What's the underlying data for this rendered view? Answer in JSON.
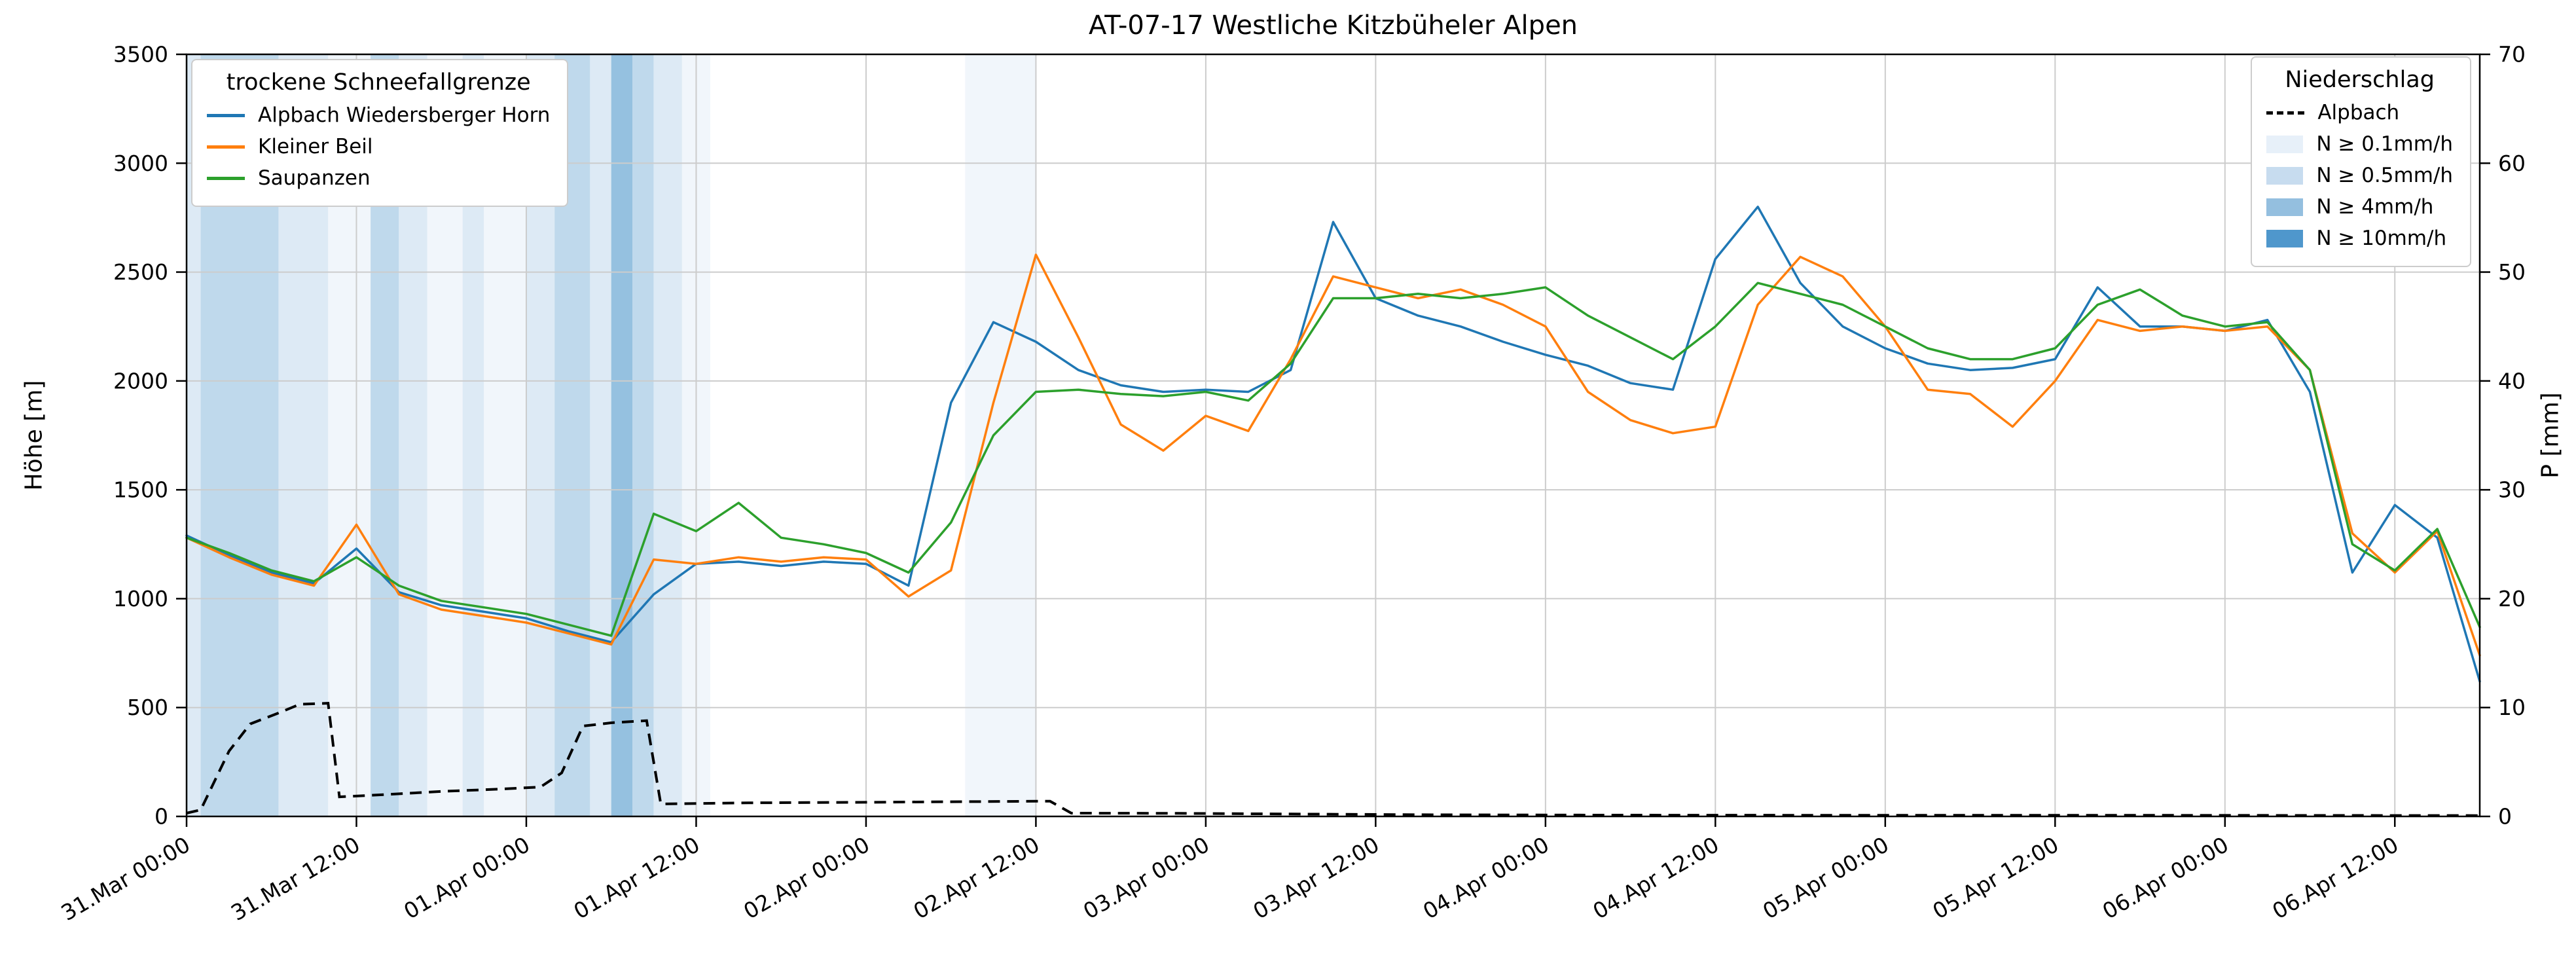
{
  "title": "AT-07-17 Westliche Kitzbüheler Alpen",
  "axes": {
    "y_left": {
      "label": "Höhe [m]",
      "min": 0,
      "max": 3500,
      "ticks": [
        0,
        500,
        1000,
        1500,
        2000,
        2500,
        3000,
        3500
      ]
    },
    "y_right": {
      "label": "P [mm]",
      "min": 0,
      "max": 70,
      "ticks": [
        0,
        10,
        20,
        30,
        40,
        50,
        60,
        70
      ]
    },
    "x": {
      "max_h": 162,
      "tick_hours": [
        0,
        12,
        24,
        36,
        48,
        60,
        72,
        84,
        96,
        108,
        120,
        132,
        144,
        156
      ],
      "tick_labels": [
        "31.Mar 00:00",
        "31.Mar 12:00",
        "01.Apr 00:00",
        "01.Apr 12:00",
        "02.Apr 00:00",
        "02.Apr 12:00",
        "03.Apr 00:00",
        "03.Apr 12:00",
        "04.Apr 00:00",
        "04.Apr 12:00",
        "05.Apr 00:00",
        "05.Apr 12:00",
        "06.Apr 00:00",
        "06.Apr 12:00"
      ],
      "grid": true
    }
  },
  "legends": {
    "snowline": {
      "title": "trockene Schneefallgrenze",
      "items": [
        {
          "label": "Alpbach Wiedersberger Horn",
          "color": "#1f77b4"
        },
        {
          "label": "Kleiner Beil",
          "color": "#ff7f0e"
        },
        {
          "label": "Saupanzen",
          "color": "#2ca02c"
        }
      ]
    },
    "precip": {
      "title": "Niederschlag",
      "items": [
        {
          "label": "Alpbach",
          "swatch": "dashed"
        },
        {
          "label": "N ≥ 0.1mm/h",
          "swatch": "patch",
          "color": "#e7f0f9"
        },
        {
          "label": "N ≥ 0.5mm/h",
          "swatch": "patch",
          "color": "#c7dcef"
        },
        {
          "label": "N ≥ 4mm/h",
          "swatch": "patch",
          "color": "#94bfdf"
        },
        {
          "label": "N ≥ 10mm/h",
          "swatch": "patch",
          "color": "#4f97cc"
        }
      ]
    }
  },
  "chart_data": {
    "type": "line",
    "title": "AT-07-17 Westliche Kitzbüheler Alpen",
    "xlabel": "",
    "ylabel_left": "Höhe [m]",
    "ylabel_right": "P [mm]",
    "ylim_left": [
      0,
      3500
    ],
    "ylim_right": [
      0,
      70
    ],
    "x_unit": "hours since 31.Mar 00:00",
    "hours": [
      0,
      3,
      6,
      9,
      12,
      15,
      18,
      21,
      24,
      27,
      30,
      33,
      36,
      39,
      42,
      45,
      48,
      51,
      54,
      57,
      60,
      63,
      66,
      69,
      72,
      75,
      78,
      81,
      84,
      87,
      90,
      93,
      96,
      99,
      102,
      105,
      108,
      111,
      114,
      117,
      120,
      123,
      126,
      129,
      132,
      135,
      138,
      141,
      144,
      147,
      150,
      153,
      156,
      159,
      162
    ],
    "series": [
      {
        "name": "Alpbach Wiedersberger Horn",
        "color": "#1f77b4",
        "values": [
          1290,
          1200,
          1120,
          1070,
          1230,
          1030,
          970,
          940,
          910,
          850,
          800,
          1020,
          1160,
          1170,
          1150,
          1170,
          1160,
          1060,
          1900,
          2270,
          2180,
          2050,
          1980,
          1950,
          1960,
          1950,
          2050,
          2730,
          2380,
          2300,
          2250,
          2180,
          2120,
          2070,
          1990,
          1960,
          2560,
          2800,
          2450,
          2250,
          2150,
          2080,
          2050,
          2060,
          2100,
          2430,
          2250,
          2250,
          2230,
          2280,
          1950,
          1120,
          1430,
          1280,
          620
        ]
      },
      {
        "name": "Kleiner Beil",
        "color": "#ff7f0e",
        "values": [
          1280,
          1190,
          1110,
          1060,
          1340,
          1020,
          950,
          920,
          890,
          840,
          790,
          1180,
          1160,
          1190,
          1170,
          1190,
          1180,
          1010,
          1130,
          1900,
          2580,
          2200,
          1800,
          1680,
          1840,
          1770,
          2100,
          2480,
          2430,
          2380,
          2420,
          2350,
          2250,
          1950,
          1820,
          1760,
          1790,
          2350,
          2570,
          2480,
          2250,
          1960,
          1940,
          1790,
          2000,
          2280,
          2230,
          2250,
          2230,
          2250,
          2050,
          1300,
          1120,
          1310,
          740
        ]
      },
      {
        "name": "Saupanzen",
        "color": "#2ca02c",
        "values": [
          1280,
          1210,
          1130,
          1080,
          1190,
          1060,
          990,
          960,
          930,
          880,
          830,
          1390,
          1310,
          1440,
          1280,
          1250,
          1210,
          1120,
          1350,
          1750,
          1950,
          1960,
          1940,
          1930,
          1950,
          1910,
          2080,
          2380,
          2380,
          2400,
          2380,
          2400,
          2430,
          2300,
          2200,
          2100,
          2250,
          2450,
          2400,
          2350,
          2250,
          2150,
          2100,
          2100,
          2150,
          2350,
          2420,
          2300,
          2250,
          2270,
          2050,
          1250,
          1130,
          1320,
          870
        ]
      }
    ],
    "precip_line": {
      "name": "Alpbach",
      "color": "#000000",
      "style": "dashed",
      "axis": "right",
      "points": [
        [
          0,
          0.3
        ],
        [
          1,
          0.6
        ],
        [
          3,
          6.0
        ],
        [
          4.5,
          8.5
        ],
        [
          6.5,
          9.5
        ],
        [
          8,
          10.3
        ],
        [
          10,
          10.4
        ],
        [
          10.8,
          1.8
        ],
        [
          14,
          2.0
        ],
        [
          18,
          2.3
        ],
        [
          22,
          2.5
        ],
        [
          25,
          2.7
        ],
        [
          26.5,
          4.0
        ],
        [
          28,
          8.3
        ],
        [
          30,
          8.6
        ],
        [
          32.5,
          8.8
        ],
        [
          33.5,
          1.15
        ],
        [
          40,
          1.25
        ],
        [
          48,
          1.3
        ],
        [
          54,
          1.35
        ],
        [
          61,
          1.4
        ],
        [
          62.5,
          0.3
        ],
        [
          70,
          0.28
        ],
        [
          78,
          0.22
        ],
        [
          88,
          0.15
        ],
        [
          100,
          0.12
        ],
        [
          120,
          0.1
        ],
        [
          140,
          0.1
        ],
        [
          162,
          0.08
        ]
      ]
    },
    "precip_bands": [
      {
        "start_h": 0,
        "end_h": 1,
        "level": "0.5"
      },
      {
        "start_h": 1,
        "end_h": 6.5,
        "level": "4"
      },
      {
        "start_h": 6.5,
        "end_h": 10,
        "level": "0.5"
      },
      {
        "start_h": 10,
        "end_h": 13,
        "level": "0.1"
      },
      {
        "start_h": 13,
        "end_h": 15,
        "level": "4"
      },
      {
        "start_h": 15,
        "end_h": 17,
        "level": "0.5"
      },
      {
        "start_h": 17,
        "end_h": 19.5,
        "level": "0.1"
      },
      {
        "start_h": 19.5,
        "end_h": 21,
        "level": "0.5"
      },
      {
        "start_h": 21,
        "end_h": 24,
        "level": "0.1"
      },
      {
        "start_h": 24,
        "end_h": 26,
        "level": "0.5"
      },
      {
        "start_h": 26,
        "end_h": 28.5,
        "level": "4"
      },
      {
        "start_h": 28.5,
        "end_h": 30,
        "level": "0.5"
      },
      {
        "start_h": 30,
        "end_h": 31.5,
        "level": "10"
      },
      {
        "start_h": 31.5,
        "end_h": 33,
        "level": "4"
      },
      {
        "start_h": 33,
        "end_h": 35,
        "level": "0.5"
      },
      {
        "start_h": 35,
        "end_h": 37,
        "level": "0.1"
      },
      {
        "start_h": 55,
        "end_h": 60,
        "level": "0.1"
      }
    ],
    "band_colors": {
      "0.1": "#e7f0f9",
      "0.5": "#c7dcef",
      "4": "#94bfdf",
      "10": "#4f97cc"
    },
    "legend_left_title": "trockene Schneefallgrenze",
    "legend_right_title": "Niederschlag"
  }
}
